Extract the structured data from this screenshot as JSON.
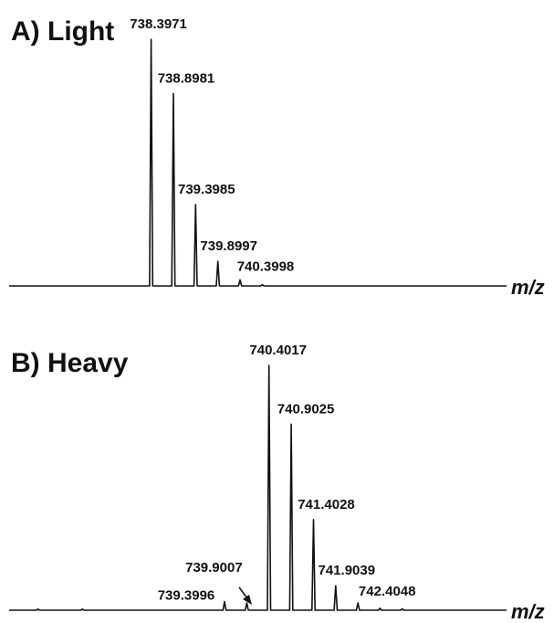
{
  "chart_data": [
    {
      "type": "line",
      "title": "A) Light",
      "xlabel": "m/z",
      "ylabel": "",
      "xlim": [
        735.2,
        746.4
      ],
      "ylim": [
        0,
        100
      ],
      "grid": false,
      "line_color": "#111111",
      "peaks": [
        {
          "mz": 738.3971,
          "intensity": 100,
          "label": "738.3971"
        },
        {
          "mz": 738.8981,
          "intensity": 78,
          "label": "738.8981"
        },
        {
          "mz": 739.3985,
          "intensity": 33,
          "label": "739.3985"
        },
        {
          "mz": 739.8997,
          "intensity": 10,
          "label": "739.8997"
        },
        {
          "mz": 740.3998,
          "intensity": 2.5,
          "label": "740.3998"
        },
        {
          "mz": 740.9,
          "intensity": 0.5,
          "label": ""
        }
      ]
    },
    {
      "type": "line",
      "title": "B) Heavy",
      "xlabel": "m/z",
      "ylabel": "",
      "xlim": [
        734.55,
        745.75
      ],
      "ylim": [
        0,
        100
      ],
      "grid": false,
      "line_color": "#111111",
      "peaks": [
        {
          "mz": 735.2,
          "intensity": 0.5,
          "label": ""
        },
        {
          "mz": 736.2,
          "intensity": 0.5,
          "label": ""
        },
        {
          "mz": 739.3996,
          "intensity": 3.5,
          "label": "739.3996"
        },
        {
          "mz": 739.9007,
          "intensity": 3,
          "label": "739.9007"
        },
        {
          "mz": 740.4017,
          "intensity": 100,
          "label": "740.4017"
        },
        {
          "mz": 740.9025,
          "intensity": 76,
          "label": "740.9025"
        },
        {
          "mz": 741.4028,
          "intensity": 37,
          "label": "741.4028"
        },
        {
          "mz": 741.9039,
          "intensity": 10,
          "label": "741.9039"
        },
        {
          "mz": 742.4048,
          "intensity": 3,
          "label": "742.4048"
        },
        {
          "mz": 742.9,
          "intensity": 0.8,
          "label": ""
        },
        {
          "mz": 743.4,
          "intensity": 0.6,
          "label": ""
        }
      ]
    }
  ]
}
